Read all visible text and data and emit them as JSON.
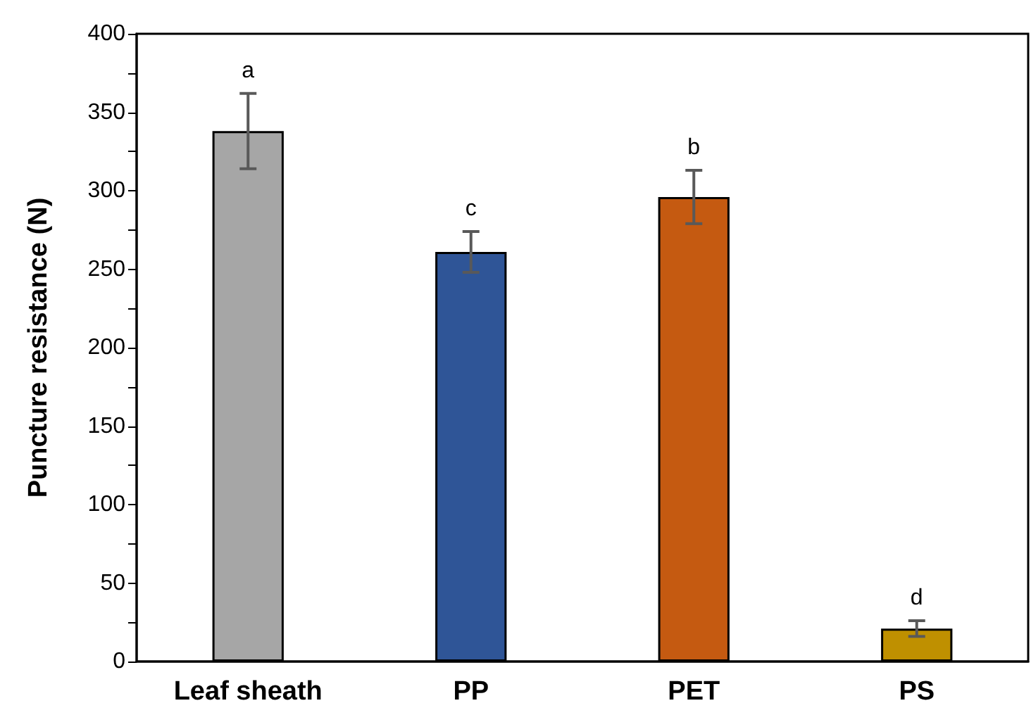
{
  "chart_data": {
    "type": "bar",
    "ylabel": "Puncture resistance (N)",
    "categories": [
      "Leaf sheath",
      "PP",
      "PET",
      "PS"
    ],
    "values": [
      338,
      261,
      296,
      21
    ],
    "errors": [
      24,
      13,
      17,
      5
    ],
    "colors": [
      "#a6a6a6",
      "#2f5597",
      "#c55a11",
      "#bf9000"
    ],
    "ylim": [
      0,
      400
    ],
    "yticks": [
      0,
      {
        "value": 25,
        "label": null
      },
      50,
      {
        "value": 75,
        "label": null
      },
      100,
      {
        "value": 125,
        "label": null
      },
      150,
      {
        "value": 175,
        "label": null
      },
      200,
      {
        "value": 225,
        "label": null
      },
      250,
      {
        "value": 275,
        "label": null
      },
      300,
      {
        "value": 325,
        "label": null
      },
      350,
      {
        "value": 375,
        "label": null
      },
      400
    ],
    "annotations": [
      {
        "text": "a",
        "x": "Leaf sheath",
        "y": 362
      },
      {
        "text": "c",
        "x": "PP",
        "y": 274
      },
      {
        "text": "b",
        "x": "PET",
        "y": 313
      },
      {
        "text": "d",
        "x": "PS",
        "y": 26
      }
    ],
    "grid": false
  }
}
